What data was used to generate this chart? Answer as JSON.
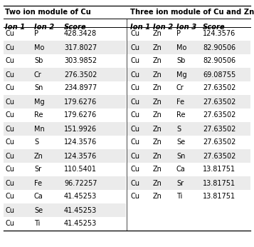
{
  "title_left": "Two ion module of Cu",
  "title_right": "Three ion module of Cu and Zn",
  "headers_left": [
    "Ion 1",
    "Ion 2",
    "Score"
  ],
  "headers_right": [
    "Ion 1",
    "Ion 2",
    "Ion 3",
    "Score"
  ],
  "rows_left": [
    [
      "Cu",
      "P",
      "428.3428"
    ],
    [
      "Cu",
      "Mo",
      "317.8027"
    ],
    [
      "Cu",
      "Sb",
      "303.9852"
    ],
    [
      "Cu",
      "Cr",
      "276.3502"
    ],
    [
      "Cu",
      "Sn",
      "234.8977"
    ],
    [
      "Cu",
      "Mg",
      "179.6276"
    ],
    [
      "Cu",
      "Re",
      "179.6276"
    ],
    [
      "Cu",
      "Mn",
      "151.9926"
    ],
    [
      "Cu",
      "S",
      "124.3576"
    ],
    [
      "Cu",
      "Zn",
      "124.3576"
    ],
    [
      "Cu",
      "Sr",
      "110.5401"
    ],
    [
      "Cu",
      "Fe",
      "96.72257"
    ],
    [
      "Cu",
      "Ca",
      "41.45253"
    ],
    [
      "Cu",
      "Se",
      "41.45253"
    ],
    [
      "Cu",
      "Ti",
      "41.45253"
    ]
  ],
  "rows_right": [
    [
      "Cu",
      "Zn",
      "P",
      "124.3576"
    ],
    [
      "Cu",
      "Zn",
      "Mo",
      "82.90506"
    ],
    [
      "Cu",
      "Zn",
      "Sb",
      "82.90506"
    ],
    [
      "Cu",
      "Zn",
      "Mg",
      "69.08755"
    ],
    [
      "Cu",
      "Zn",
      "Cr",
      "27.63502"
    ],
    [
      "Cu",
      "Zn",
      "Fe",
      "27.63502"
    ],
    [
      "Cu",
      "Zn",
      "Re",
      "27.63502"
    ],
    [
      "Cu",
      "Zn",
      "S",
      "27.63502"
    ],
    [
      "Cu",
      "Zn",
      "Se",
      "27.63502"
    ],
    [
      "Cu",
      "Zn",
      "Sn",
      "27.63502"
    ],
    [
      "Cu",
      "Zn",
      "Ca",
      "13.81751"
    ],
    [
      "Cu",
      "Zn",
      "Sr",
      "13.81751"
    ],
    [
      "Cu",
      "Zn",
      "Ti",
      "13.81751"
    ]
  ],
  "stripe_odd": "#ebebeb",
  "stripe_even": "#ffffff",
  "header_bg": "#d5d5d5",
  "fig_width": 3.57,
  "fig_height": 3.46,
  "dpi": 100
}
